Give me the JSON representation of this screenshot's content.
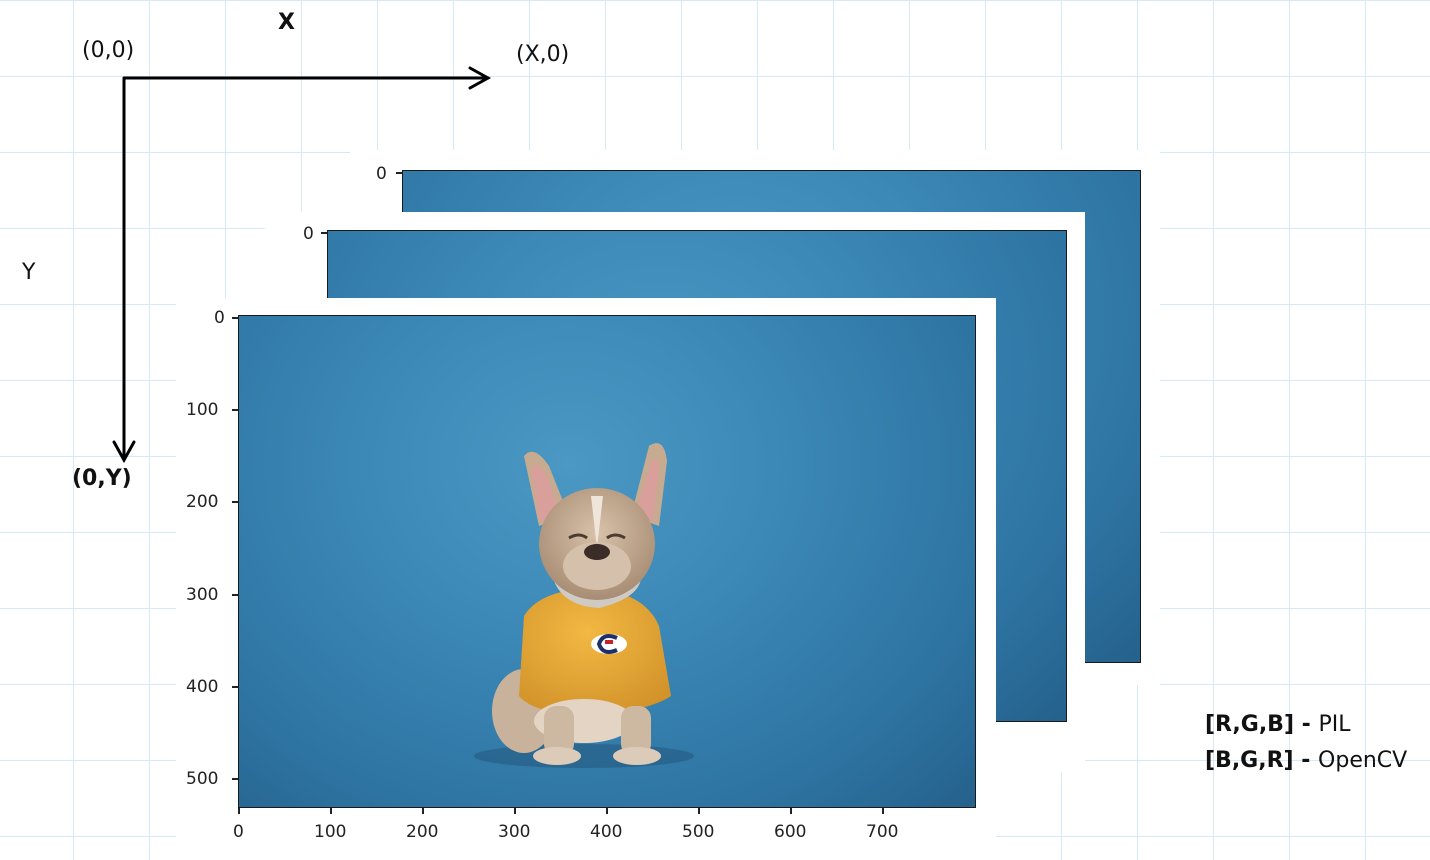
{
  "axes": {
    "x_title": "X",
    "y_title": "Y",
    "origin": "(0,0)",
    "x_end": "(X,0)",
    "y_end": "(0,Y)"
  },
  "back_layers": [
    {
      "y_tick": "0"
    },
    {
      "y_tick": "0"
    }
  ],
  "front_plot": {
    "x_ticks": [
      "0",
      "100",
      "200",
      "300",
      "400",
      "500",
      "600",
      "700"
    ],
    "y_ticks": [
      "0",
      "100",
      "200",
      "300",
      "400",
      "500"
    ],
    "image_subject": "french-bulldog-yellow-shirt"
  },
  "legend": [
    {
      "order": "[R,G,B]",
      "sep": " - ",
      "library": "PIL"
    },
    {
      "order": "[B,G,R]",
      "sep": " - ",
      "library": "OpenCV"
    }
  ],
  "colors": {
    "background_blue": "#3a86b5",
    "shirt_yellow": "#e8a83a",
    "grid_line": "#d6e9f7"
  }
}
